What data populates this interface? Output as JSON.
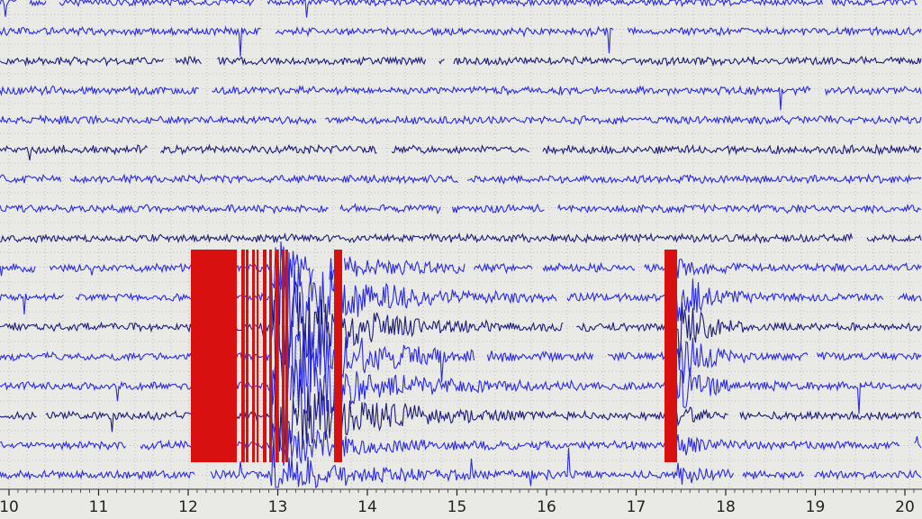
{
  "time_axis": {
    "ticks": [
      10,
      11,
      12,
      13,
      14,
      15,
      16,
      17,
      18,
      19,
      20
    ]
  }
}
